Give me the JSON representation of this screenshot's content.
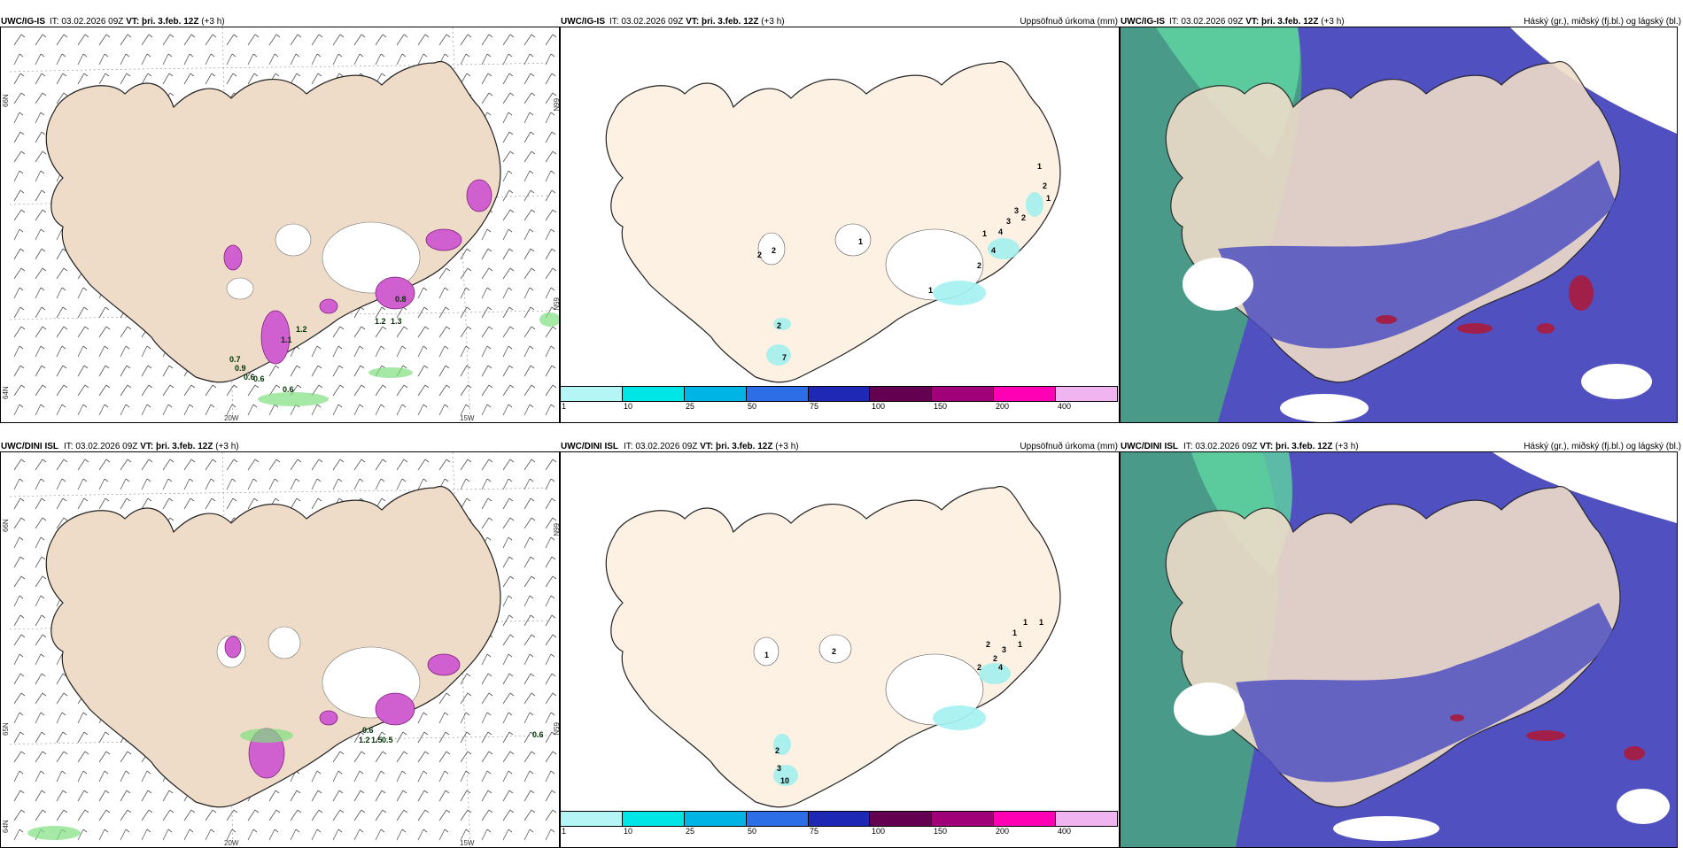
{
  "rows": [
    {
      "model": "UWC/IG-IS",
      "it_label": "IT:",
      "it_value": "03.02.2026 09Z",
      "vt_label": "VT:",
      "vt_value": "þri. 3.feb. 12Z",
      "lead": "(+3 h)"
    },
    {
      "model": "UWC/DINI ISL",
      "it_label": "IT:",
      "it_value": "03.02.2026 09Z",
      "vt_label": "VT:",
      "vt_value": "þri. 3.feb. 12Z",
      "lead": "(+3 h)"
    }
  ],
  "panels": {
    "wind": {
      "axis_labels": {
        "lat66": "66N",
        "lat64": "64N",
        "lat65": "65N",
        "lon20": "20W",
        "lon15": "15W"
      }
    },
    "precip": {
      "title": "Uppsöfnuð úrkoma (mm)"
    },
    "cloud": {
      "title": "Háský (gr.), miðský (fj.bl.) og lágský (bl.)"
    }
  },
  "colorbar": {
    "colors": [
      "#b4f5f5",
      "#00e6e6",
      "#00b4e6",
      "#2d6ee6",
      "#1e28b4",
      "#640050",
      "#a00078",
      "#ff00b4",
      "#f0b4f0"
    ],
    "labels": [
      "1",
      "10",
      "25",
      "50",
      "75",
      "100",
      "150",
      "200",
      "400"
    ]
  },
  "colors": {
    "land": "#eedcc8",
    "precip_land": "#fdf1e3",
    "sea_cloud": "#5050c0",
    "low_cloud": "#4a9a8a"
  },
  "top_values": {
    "wind": [
      "1.2",
      "1.1",
      "0.7",
      "0.9",
      "0.6",
      "0.6",
      "0.6",
      "1.2",
      "1.3",
      "0.8"
    ],
    "precip": [
      "1",
      "2",
      "2",
      "1",
      "2",
      "3",
      "3",
      "4",
      "2",
      "1",
      "1",
      "2",
      "2",
      "4",
      "7",
      "1"
    ]
  },
  "bottom_values": {
    "wind": [
      "0.6",
      "0.5",
      "1.5",
      "1.2",
      "0.6"
    ],
    "precip": [
      "1",
      "1",
      "1",
      "1",
      "2",
      "2",
      "3",
      "2",
      "2",
      "4",
      "1",
      "2",
      "3",
      "10"
    ]
  }
}
